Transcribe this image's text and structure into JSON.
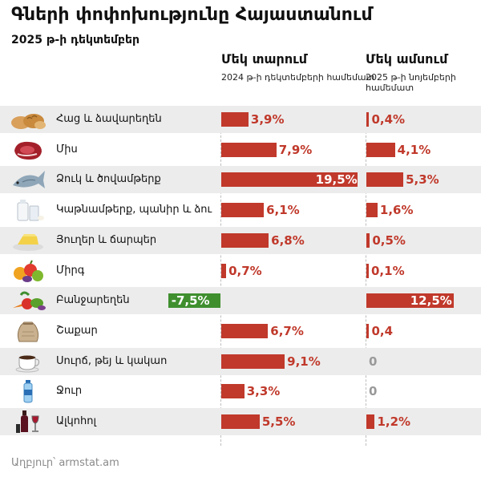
{
  "title": "Գների փոփոխությունը Հայաստանում",
  "subtitle": "2025 թ-ի դեկտեմբեր",
  "source": "Աղբյուր՝ armstat.am",
  "colors": {
    "positive": "#c0392b",
    "negative": "#3f8f2f",
    "zero": "#999999",
    "stripe": "#ececec"
  },
  "chart_data": {
    "type": "bar",
    "orientation": "horizontal",
    "categories": [
      "Հաց և ձավարեղեն",
      "Միս",
      "Ձուկ և ծովամթերք",
      "Կաթնամթերք, պանիր և ձու",
      "Յուղեր և ճարպեր",
      "Միրգ",
      "Բանջարեղեն",
      "Շաքար",
      "Սուրճ, թեյ և կակաո",
      "Ջուր",
      "Ալկոհոլ"
    ],
    "icons": [
      "bread-icon",
      "meat-icon",
      "fish-icon",
      "milk-icon",
      "butter-icon",
      "fruit-icon",
      "vegetables-icon",
      "sugar-sack-icon",
      "coffee-cup-icon",
      "water-bottle-icon",
      "wine-bottle-icon"
    ],
    "series": [
      {
        "name": "Մեկ տարում",
        "note": "2024 թ-ի դեկտեմբերի համեմատ",
        "values": [
          3.9,
          7.9,
          19.5,
          6.1,
          6.8,
          0.7,
          -7.5,
          6.7,
          9.1,
          3.3,
          5.5
        ],
        "labels": [
          "3,9%",
          "7,9%",
          "19,5%",
          "6,1%",
          "6,8%",
          "0,7%",
          "-7,5%",
          "6,7%",
          "9,1%",
          "3,3%",
          "5,5%"
        ]
      },
      {
        "name": "Մեկ ամսում",
        "note": "2025 թ-ի նոյեմբերի համեմատ",
        "values": [
          0.4,
          4.1,
          5.3,
          1.6,
          0.5,
          0.1,
          12.5,
          0.4,
          0,
          0,
          1.2
        ],
        "labels": [
          "0,4%",
          "4,1%",
          "5,3%",
          "1,6%",
          "0,5%",
          "0,1%",
          "12,5%",
          "0,4",
          "0",
          "0",
          "1,2%"
        ]
      }
    ]
  }
}
